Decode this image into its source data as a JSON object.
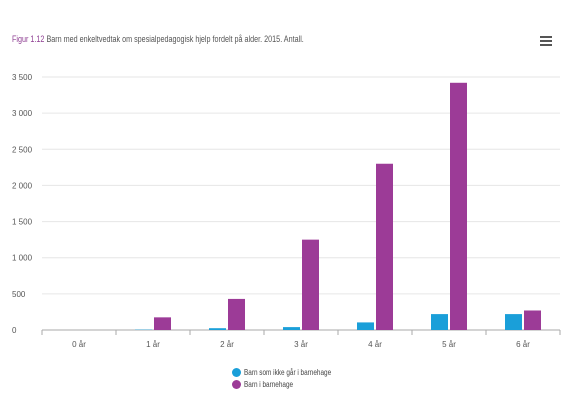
{
  "figure_label": "Figur 1.12",
  "title": "Barn med enkeltvedtak om spesialpedagogisk hjelp fordelt på alder. 2015. Antall.",
  "icons": {
    "menu": "hamburger-menu-icon"
  },
  "colors": {
    "series1": "#1a9fd9",
    "series2": "#9c3b97",
    "grid": "#e6e6e6",
    "axis": "#aaaaaa",
    "text": "#555555"
  },
  "chart_data": {
    "type": "bar",
    "title": "Barn med enkeltvedtak om spesialpedagogisk hjelp fordelt på alder. 2015. Antall.",
    "categories": [
      "0 år",
      "1 år",
      "2 år",
      "3 år",
      "4 år",
      "5 år",
      "6 år"
    ],
    "series": [
      {
        "name": "Barn som ikke går i barnehage",
        "values": [
          0,
          5,
          25,
          40,
          105,
          220,
          220
        ]
      },
      {
        "name": "Barn i barnehage",
        "values": [
          0,
          175,
          430,
          1250,
          2300,
          3420,
          270
        ]
      }
    ],
    "yticks": [
      0,
      500,
      1000,
      1500,
      2000,
      2500,
      3000,
      3500
    ],
    "ytick_labels": [
      "0",
      "500",
      "1 000",
      "1 500",
      "2 000",
      "2 500",
      "3 000",
      "3 500"
    ],
    "ylim": [
      0,
      3500
    ],
    "xlabel": "",
    "ylabel": "",
    "grid": true,
    "legend_position": "bottom-center"
  }
}
